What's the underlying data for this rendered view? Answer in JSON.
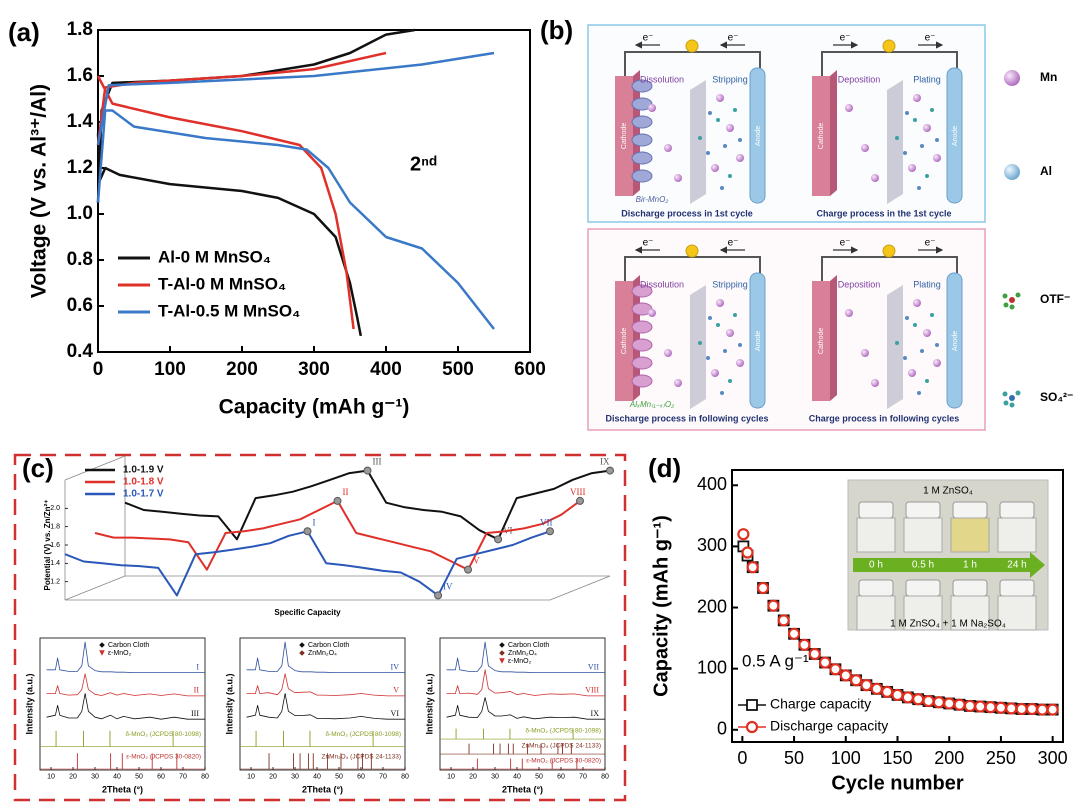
{
  "chart_data": [
    {
      "type": "line",
      "label": "(a)",
      "xlabel": "Capacity (mAh g⁻¹)",
      "ylabel": "Voltage (V vs. Al³⁺/Al)",
      "annotation": "2ⁿᵈ",
      "xlim": [
        0,
        600
      ],
      "xticks": [
        0,
        100,
        200,
        300,
        400,
        500,
        600
      ],
      "ylim": [
        0.4,
        1.8
      ],
      "yticks": [
        0.4,
        0.6,
        0.8,
        {
          "value": 1,
          "label": "1.0"
        },
        1.2,
        1.4,
        1.6,
        1.8
      ],
      "legend": "lower left",
      "series": [
        {
          "name": "Al-0 M MnSO₄",
          "color": "#111111",
          "x": [
            0,
            3,
            10,
            30,
            100,
            200,
            250,
            300,
            330,
            350,
            360,
            365,
            null,
            0,
            5,
            20,
            100,
            200,
            300,
            350,
            400,
            440
          ],
          "values": [
            1.35,
            1.15,
            1.2,
            1.17,
            1.13,
            1.1,
            1.07,
            1.0,
            0.9,
            0.7,
            0.55,
            0.47,
            null,
            1.05,
            1.45,
            1.57,
            1.58,
            1.6,
            1.65,
            1.7,
            1.78,
            1.8
          ]
        },
        {
          "name": "T-Al-0 M MnSO₄",
          "color": "#e0302a",
          "x": [
            0,
            20,
            100,
            200,
            280,
            310,
            330,
            345,
            355,
            null,
            0,
            10,
            50,
            200,
            300,
            400
          ],
          "values": [
            1.6,
            1.48,
            1.42,
            1.36,
            1.3,
            1.2,
            1.0,
            0.75,
            0.5,
            null,
            1.3,
            1.55,
            1.57,
            1.6,
            1.63,
            1.7
          ]
        },
        {
          "name": "T-Al-0.5 M MnSO₄",
          "color": "#3a78c8",
          "x": [
            0,
            10,
            20,
            50,
            150,
            250,
            290,
            320,
            350,
            400,
            450,
            500,
            550,
            null,
            0,
            15,
            100,
            300,
            450,
            550
          ],
          "values": [
            1.05,
            1.45,
            1.45,
            1.38,
            1.33,
            1.3,
            1.28,
            1.2,
            1.05,
            0.9,
            0.85,
            0.7,
            0.5,
            null,
            1.3,
            1.56,
            1.57,
            1.6,
            1.65,
            1.7
          ]
        }
      ]
    },
    {
      "type": "line",
      "label": "(c)",
      "xlabel": "Specific Capacity",
      "ylabel": "Potential (V) vs. Zn/Zn²⁺",
      "ylim": [
        1.0,
        2.2
      ],
      "yticks": [
        1.2,
        1.4,
        1.6,
        1.8,
        {
          "value": 2,
          "label": "2.0"
        }
      ],
      "legend": "upper left",
      "series": [
        {
          "name": "1.0-1.9 V",
          "color": "#111111",
          "values": [
            1.8,
            1.72,
            1.7,
            1.68,
            1.66,
            1.65,
            1.4,
            1.85,
            1.88,
            1.92,
            1.98,
            2.05,
            2.12,
            2.15,
            1.8,
            1.75,
            1.72,
            1.7,
            1.65,
            1.5,
            1.4,
            1.85,
            1.9,
            1.95,
            2.05,
            2.12,
            2.15
          ],
          "point_labels": [
            null,
            null,
            null,
            null,
            null,
            null,
            null,
            null,
            null,
            null,
            null,
            null,
            null,
            "III",
            null,
            null,
            null,
            null,
            null,
            null,
            "VI",
            null,
            null,
            null,
            null,
            null,
            "IX"
          ]
        },
        {
          "name": "1.0-1.8 V",
          "color": "#e0302a",
          "values": [
            1.6,
            1.55,
            1.55,
            1.54,
            1.53,
            1.5,
            1.2,
            1.6,
            1.62,
            1.65,
            1.7,
            1.75,
            1.85,
            1.95,
            1.6,
            1.55,
            1.5,
            1.45,
            1.4,
            1.3,
            1.2,
            1.6,
            1.62,
            1.65,
            1.7,
            1.8,
            1.95
          ],
          "point_labels": [
            null,
            null,
            null,
            null,
            null,
            null,
            null,
            null,
            null,
            null,
            null,
            null,
            null,
            "II",
            null,
            null,
            null,
            null,
            null,
            null,
            "V",
            null,
            null,
            null,
            null,
            null,
            "VIII"
          ]
        },
        {
          "name": "1.0-1.7 V",
          "color": "#2a58b8",
          "values": [
            1.5,
            1.42,
            1.4,
            1.38,
            1.37,
            1.35,
            1.05,
            1.5,
            1.52,
            1.55,
            1.58,
            1.62,
            1.7,
            1.75,
            1.4,
            1.38,
            1.35,
            1.32,
            1.3,
            1.2,
            1.05,
            1.45,
            1.5,
            1.55,
            1.6,
            1.68,
            1.75
          ],
          "point_labels": [
            null,
            null,
            null,
            null,
            null,
            null,
            null,
            null,
            null,
            null,
            null,
            null,
            null,
            "I",
            null,
            null,
            null,
            null,
            null,
            null,
            "IV",
            null,
            null,
            null,
            null,
            null,
            "VII"
          ]
        }
      ]
    },
    {
      "type": "line",
      "xlabel": "2Theta (°)",
      "ylabel": "Intensity (a.u.)",
      "xlim": [
        5,
        80
      ],
      "xticks": [
        10,
        20,
        30,
        40,
        50,
        60,
        70,
        80
      ],
      "x": [
        8,
        12,
        13,
        14,
        18,
        22,
        24,
        25.5,
        27,
        30,
        33,
        37,
        40,
        43,
        48,
        55,
        60,
        66,
        72,
        80
      ],
      "peak_markers": [
        {
          "name": "Carbon Cloth",
          "color": "#111111",
          "marker": "diamond"
        },
        {
          "name": "ε-MnO₂",
          "color": "#d03030",
          "marker": "triangle"
        }
      ],
      "series": [
        {
          "name": "I",
          "color": "#3050a0",
          "values": [
            2,
            2,
            5,
            2,
            1.6,
            1.6,
            3,
            9,
            3,
            1.8,
            1.5,
            1.5,
            1.4,
            1.4,
            1.3,
            1.3,
            1.3,
            1.3,
            1.3,
            1.3
          ]
        },
        {
          "name": "II",
          "color": "#d03030",
          "values": [
            2,
            2,
            4,
            2,
            1.6,
            1.7,
            3,
            7,
            3,
            1.8,
            1.5,
            2.2,
            1.6,
            2,
            1.5,
            1.9,
            1.5,
            1.9,
            1.4,
            1.4
          ]
        },
        {
          "name": "III",
          "color": "#111111",
          "values": [
            2,
            2.5,
            5,
            2.5,
            1.8,
            1.8,
            3.5,
            8,
            3.5,
            2,
            1.6,
            2.5,
            1.6,
            2.2,
            1.6,
            2,
            1.5,
            2,
            1.5,
            1.5
          ]
        }
      ],
      "references": [
        {
          "name": "δ-MnO₂ (JCPDS 80-1098)",
          "color": "#8a9a20",
          "peaks": [
            12.3,
            24.8,
            36.8,
            65.5
          ]
        },
        {
          "name": "ε-MnO₂ (JCPDS 30-0820)",
          "color": "#c03030",
          "peaks": [
            22,
            37.1,
            42.4,
            56,
            67.2
          ]
        }
      ]
    },
    {
      "type": "line",
      "xlabel": "2Theta (°)",
      "ylabel": "Intensity (a.u.)",
      "xlim": [
        5,
        80
      ],
      "xticks": [
        10,
        20,
        30,
        40,
        50,
        60,
        70,
        80
      ],
      "x": [
        8,
        12,
        13,
        14,
        18,
        22,
        24,
        25.5,
        27,
        30,
        33,
        37,
        40,
        43,
        48,
        55,
        60,
        66,
        72,
        80
      ],
      "peak_markers": [
        {
          "name": "Carbon Cloth",
          "color": "#111111",
          "marker": "diamond"
        },
        {
          "name": "ZnMn₂O₄",
          "color": "#803020",
          "marker": "diamond"
        }
      ],
      "series": [
        {
          "name": "IV",
          "color": "#3050a0",
          "values": [
            2,
            2,
            5,
            2,
            1.6,
            1.6,
            3,
            9,
            3,
            1.8,
            1.5,
            1.5,
            1.4,
            1.4,
            1.3,
            1.3,
            1.3,
            1.3,
            1.3,
            1.3
          ]
        },
        {
          "name": "V",
          "color": "#d03030",
          "values": [
            2,
            2,
            4,
            2,
            2.2,
            1.7,
            3,
            7,
            3.2,
            2.2,
            2.3,
            2.4,
            1.6,
            1.6,
            1.5,
            1.7,
            2,
            1.6,
            1.4,
            1.4
          ]
        },
        {
          "name": "VI",
          "color": "#111111",
          "values": [
            2,
            2.5,
            5,
            2.5,
            2,
            1.8,
            3.5,
            8,
            3.5,
            2.4,
            2.4,
            2.6,
            1.7,
            1.7,
            1.6,
            1.8,
            2.2,
            1.7,
            1.5,
            1.5
          ]
        }
      ],
      "references": [
        {
          "name": "δ-MnO₂ (JCPDS 80-1098)",
          "color": "#8a9a20",
          "peaks": [
            12.3,
            24.8,
            36.8,
            65.5
          ]
        },
        {
          "name": "ZnMn₂O₄ (JCPDS 24-1133)",
          "color": "#803020",
          "peaks": [
            18.2,
            29.3,
            32.3,
            36.1,
            38.3,
            44.8,
            50.9,
            58.6,
            60.7,
            64.7
          ]
        }
      ]
    },
    {
      "type": "line",
      "xlabel": "2Theta (°)",
      "ylabel": "Intensity (a.u.)",
      "xlim": [
        5,
        80
      ],
      "xticks": [
        10,
        20,
        30,
        40,
        50,
        60,
        70,
        80
      ],
      "x": [
        8,
        12,
        13,
        14,
        18,
        22,
        24,
        25.5,
        27,
        30,
        33,
        37,
        40,
        43,
        48,
        55,
        60,
        66,
        72,
        80
      ],
      "peak_markers": [
        {
          "name": "Carbon Cloth",
          "color": "#111111",
          "marker": "diamond"
        },
        {
          "name": "ZnMn₂O₄",
          "color": "#803020",
          "marker": "diamond"
        },
        {
          "name": "ε-MnO₂",
          "color": "#d03030",
          "marker": "triangle"
        }
      ],
      "series": [
        {
          "name": "VII",
          "color": "#3050a0",
          "values": [
            2,
            2,
            5,
            2,
            1.6,
            1.6,
            3,
            9,
            3,
            1.8,
            1.5,
            1.5,
            1.4,
            1.4,
            1.3,
            1.3,
            1.3,
            1.3,
            1.3,
            1.3
          ]
        },
        {
          "name": "VIII",
          "color": "#d03030",
          "values": [
            2,
            2,
            4,
            2,
            2.1,
            1.8,
            3,
            8,
            3.2,
            2.1,
            2.2,
            2.5,
            1.7,
            2,
            1.5,
            1.9,
            1.8,
            1.9,
            1.4,
            1.4
          ]
        },
        {
          "name": "IX",
          "color": "#111111",
          "values": [
            2,
            2.5,
            5,
            2.5,
            2,
            1.9,
            3.5,
            7,
            3.5,
            2.3,
            2.3,
            2.6,
            1.7,
            2.1,
            1.6,
            2,
            1.9,
            2,
            1.5,
            1.5
          ]
        }
      ],
      "references": [
        {
          "name": "δ-MnO₂ (JCPDS 80-1098)",
          "color": "#8a9a20",
          "peaks": [
            12.3,
            24.8,
            36.8,
            65.5
          ]
        },
        {
          "name": "ZnMn₂O₄ (JCPDS 24-1133)",
          "color": "#803020",
          "peaks": [
            18.2,
            29.3,
            32.3,
            36.1,
            38.3,
            44.8,
            50.9,
            58.6,
            60.7,
            64.7
          ]
        },
        {
          "name": "ε-MnO₂ (JCPDS 30-0820)",
          "color": "#c03030",
          "peaks": [
            22,
            37.1,
            42.4,
            56,
            67.2
          ]
        }
      ]
    },
    {
      "type": "scatter",
      "label": "(d)",
      "xlabel": "Cycle number",
      "ylabel": "Capacity (mAh g⁻¹)",
      "annotation": "0.5 A g⁻¹",
      "xlim": [
        -10,
        310
      ],
      "xticks": [
        0,
        50,
        100,
        150,
        200,
        250,
        300
      ],
      "ylim": [
        -20,
        425
      ],
      "yticks": [
        0,
        100,
        200,
        300,
        400
      ],
      "legend": "lower left",
      "x": [
        1,
        5,
        10,
        20,
        30,
        40,
        50,
        60,
        70,
        80,
        90,
        100,
        110,
        120,
        130,
        140,
        150,
        160,
        170,
        180,
        190,
        200,
        210,
        220,
        230,
        240,
        250,
        260,
        270,
        280,
        290,
        300
      ],
      "series": [
        {
          "name": "Charge capacity",
          "color": "#111111",
          "marker": "square",
          "values": [
            300,
            285,
            266,
            232,
            203,
            179,
            157,
            139,
            124,
            110,
            99,
            89,
            81,
            73,
            67,
            62,
            57,
            53,
            50,
            47,
            45,
            43,
            41,
            39,
            38,
            37,
            36,
            35,
            34,
            34,
            33,
            33
          ]
        },
        {
          "name": "Discharge capacity",
          "color": "#e03020",
          "marker": "circle",
          "values": [
            320,
            290,
            266,
            232,
            203,
            179,
            157,
            139,
            124,
            110,
            99,
            89,
            81,
            73,
            67,
            62,
            57,
            53,
            50,
            47,
            45,
            43,
            41,
            39,
            38,
            37,
            36,
            35,
            34,
            34,
            33,
            33
          ]
        }
      ],
      "inset": {
        "top_label": "1 M ZnSO₄",
        "times": [
          "0 h",
          "0.5 h",
          "1 h",
          "24 h"
        ],
        "bottom_label": "1 M ZnSO₄ + 1 M Na₂SO₄"
      }
    }
  ],
  "diagram_b": {
    "label": "(b)",
    "panels": [
      {
        "electrons": [
          "e⁻",
          "e⁻"
        ],
        "left_process": "Dissolution",
        "right_process": "Stripping",
        "cathode": "Cathode",
        "anode": "Anode",
        "material": "Bir-MnO₂",
        "caption": "Discharge process in 1st cycle"
      },
      {
        "electrons": [
          "e⁻",
          "e⁻"
        ],
        "left_process": "Deposition",
        "right_process": "Plating",
        "cathode": "Cathode",
        "anode": "Anode",
        "caption": "Charge process in the 1st cycle"
      },
      {
        "electrons": [
          "e⁻",
          "e⁻"
        ],
        "left_process": "Dissolution",
        "right_process": "Stripping",
        "cathode": "Cathode",
        "anode": "Anode",
        "material": "AlₓMn₍₁₋ₓ₎O₂",
        "caption": "Discharge process in following cycles"
      },
      {
        "electrons": [
          "e⁻",
          "e⁻"
        ],
        "left_process": "Deposition",
        "right_process": "Plating",
        "cathode": "Cathode",
        "anode": "Anode",
        "caption": "Charge process in following cycles"
      }
    ],
    "legend": [
      "Mn",
      "Al",
      "OTF⁻",
      "SO₄²⁻"
    ]
  }
}
